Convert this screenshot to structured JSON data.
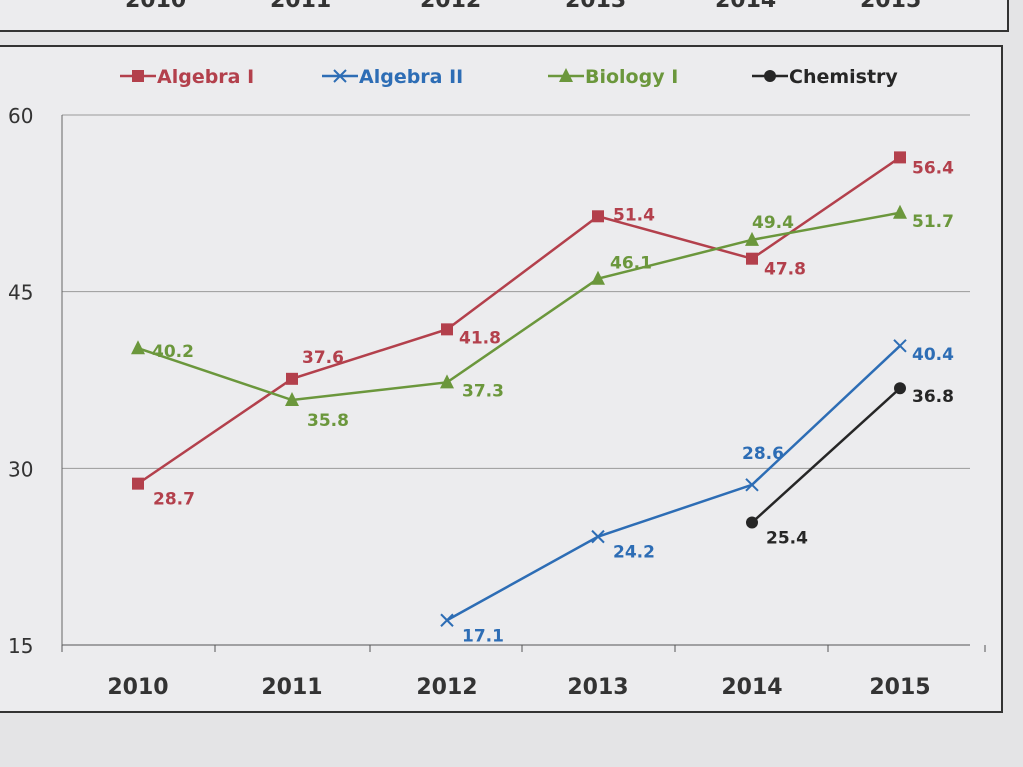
{
  "previous_chart_axis": [
    "2010",
    "2011",
    "2012",
    "2013",
    "2014",
    "2015"
  ],
  "chart_data": {
    "type": "line",
    "title": "",
    "xlabel": "",
    "ylabel": "",
    "categories": [
      "2010",
      "2011",
      "2012",
      "2013",
      "2014",
      "2015"
    ],
    "ylim": [
      15,
      60
    ],
    "yticks": [
      15,
      30,
      45,
      60
    ],
    "ytick_labels": [
      "15",
      "30",
      "45",
      "60"
    ],
    "grid": true,
    "legend_position": "top",
    "series": [
      {
        "name": "Algebra I",
        "color": "#b3404c",
        "marker": "square",
        "values": [
          28.7,
          37.6,
          41.8,
          51.4,
          47.8,
          56.4
        ],
        "labels": [
          "28.7",
          "37.6",
          "41.8",
          "51.4",
          "47.8",
          "56.4"
        ]
      },
      {
        "name": "Algebra II",
        "color": "#2d6db5",
        "marker": "x",
        "values": [
          null,
          null,
          17.1,
          24.2,
          28.6,
          40.4
        ],
        "labels": [
          "",
          "",
          "17.1",
          "24.2",
          "28.6",
          "40.4"
        ]
      },
      {
        "name": "Biology I",
        "color": "#6b973c",
        "marker": "triangle",
        "values": [
          40.2,
          35.8,
          37.3,
          46.1,
          49.4,
          51.7
        ],
        "labels": [
          "40.2",
          "35.8",
          "37.3",
          "46.1",
          "49.4",
          "51.7"
        ]
      },
      {
        "name": "Chemistry",
        "color": "#262626",
        "marker": "circle",
        "values": [
          null,
          null,
          null,
          null,
          25.4,
          36.8
        ],
        "labels": [
          "",
          "",
          "",
          "",
          "25.4",
          "36.8"
        ]
      }
    ]
  }
}
